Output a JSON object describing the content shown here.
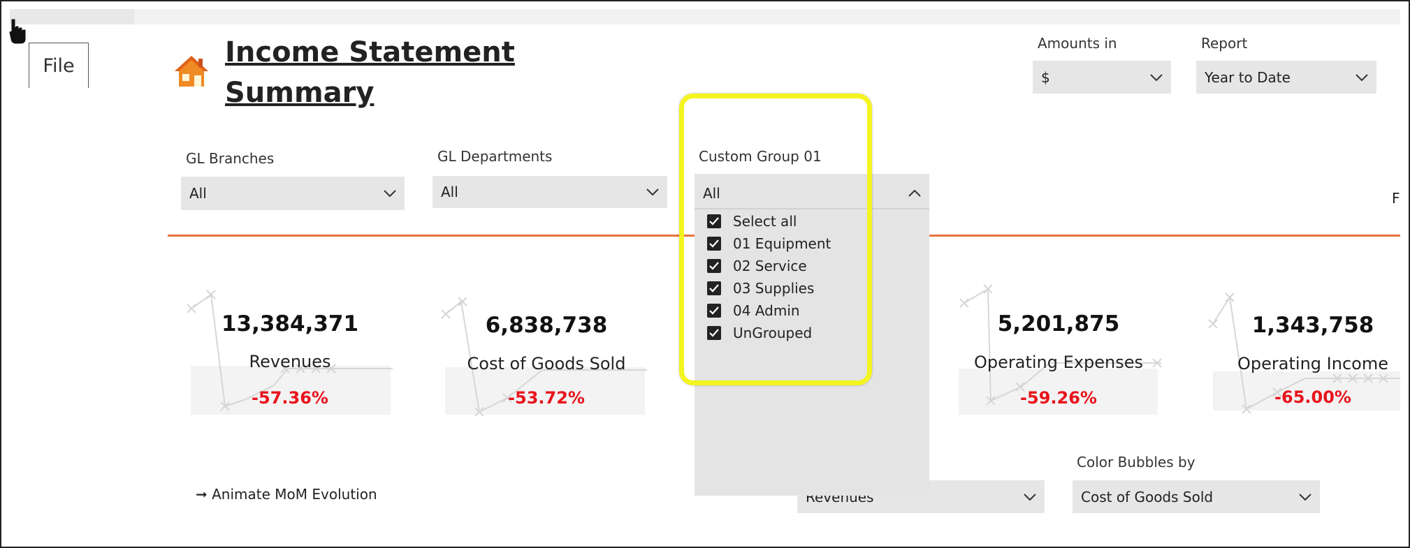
{
  "menu": {
    "file_tab": "File"
  },
  "page": {
    "title": "Income Statement Summary",
    "title_line1": "Income Statement",
    "title_line2": "Summary"
  },
  "filters": {
    "amounts_in": {
      "label": "Amounts in",
      "value": "$"
    },
    "report": {
      "label": "Report",
      "value": "Year to Date"
    },
    "gl_branches": {
      "label": "GL Branches",
      "value": "All"
    },
    "gl_departments": {
      "label": "GL Departments",
      "value": "All"
    },
    "custom_group": {
      "label": "Custom Group 01",
      "value": "All",
      "options": [
        {
          "label": "Select all",
          "checked": true
        },
        {
          "label": "01 Equipment",
          "checked": true
        },
        {
          "label": "02 Service",
          "checked": true
        },
        {
          "label": "03 Supplies",
          "checked": true
        },
        {
          "label": "04 Admin",
          "checked": true
        },
        {
          "label": "UnGrouped",
          "checked": true
        }
      ]
    },
    "bubble_size": {
      "value": "Revenues"
    },
    "color_bubbles": {
      "label": "Color Bubbles by",
      "value": "Cost of Goods Sold"
    }
  },
  "kpis": [
    {
      "value": "13,384,371",
      "name": "Revenues",
      "pct": "-57.36%"
    },
    {
      "value": "6,838,738",
      "name": "Cost of Goods Sold",
      "pct": "-53.72%"
    },
    {
      "value": "5,201,875",
      "name": "Operating Expenses",
      "pct": "-59.26%"
    },
    {
      "value": "1,343,758",
      "name": "Operating Income",
      "pct": "-65.00%"
    }
  ],
  "animate_label": "➞ Animate MoM Evolution",
  "edge_letter": "F",
  "colors": {
    "accent_line": "#e8733a",
    "negative": "#e8141c",
    "highlight": "#f4f420",
    "home_icon": "#f08a24"
  },
  "icons": {
    "home": "home-icon",
    "cursor": "hand-cursor-icon",
    "chevron": "chevron-down-icon",
    "chevron_up": "chevron-up-icon",
    "check": "checkbox-checked-icon"
  }
}
